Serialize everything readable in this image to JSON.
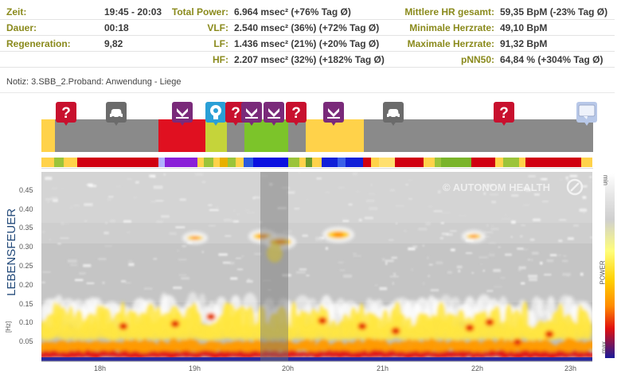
{
  "stats": {
    "col1": [
      {
        "label": "Zeit:",
        "value": "19:45 - 20:03"
      },
      {
        "label": "Dauer:",
        "value": "00:18"
      },
      {
        "label": "Regeneration:",
        "value": "9,82"
      }
    ],
    "col2": [
      {
        "label": "Total Power:",
        "value": "6.964 msec² (+76% Tag Ø)"
      },
      {
        "label": "VLF:",
        "value": "2.540 msec² (36%) (+72% Tag Ø)"
      },
      {
        "label": "LF:",
        "value": "1.436 msec² (21%) (+20% Tag Ø)"
      },
      {
        "label": "HF:",
        "value": "2.207 msec² (32%) (+182% Tag Ø)"
      }
    ],
    "col3": [
      {
        "label": "Mittlere HR gesamt:",
        "value": "59,35 BpM (-23% Tag Ø)"
      },
      {
        "label": "Minimale Herzrate:",
        "value": "49,10 BpM"
      },
      {
        "label": "Maximale Herzrate:",
        "value": "91,32 BpM"
      },
      {
        "label": "pNN50:",
        "value": "64,84 % (+304% Tag Ø)"
      }
    ]
  },
  "note": "Notiz: 3.SBB_2.Proband: Anwendung - Liege",
  "watermark": "© AUTONOM HEALTH",
  "markers": [
    {
      "kind": "question",
      "icon": "question-icon",
      "color": "#c8102e"
    },
    {
      "kind": "car",
      "icon": "car-icon",
      "color": "#6b6b6b"
    },
    {
      "kind": "chevron",
      "icon": "chevron-down-icon",
      "color": "#7a2a7a"
    },
    {
      "kind": "head",
      "icon": "head-icon",
      "color": "#2a9fd6"
    },
    {
      "kind": "question",
      "icon": "question-icon",
      "color": "#c8102e"
    },
    {
      "kind": "chevron",
      "icon": "chevron-down-icon",
      "color": "#7a2a7a"
    },
    {
      "kind": "chevron",
      "icon": "chevron-down-icon",
      "color": "#7a2a7a"
    },
    {
      "kind": "question",
      "icon": "question-icon",
      "color": "#c8102e"
    },
    {
      "kind": "chevron",
      "icon": "chevron-down-icon",
      "color": "#7a2a7a"
    },
    {
      "kind": "car",
      "icon": "car-icon",
      "color": "#6b6b6b"
    },
    {
      "kind": "question",
      "icon": "question-icon",
      "color": "#c8102e"
    },
    {
      "kind": "comment",
      "icon": "comment-icon",
      "color": "#b8c8e8"
    }
  ],
  "colors": {
    "label": "#8a8a1c",
    "marker_gray": "#8a8a8a",
    "marker_yellow": "#ffd24a",
    "marker_red": "#e01020",
    "marker_lime": "#c5d43a",
    "marker_green": "#7cc42a"
  },
  "chart_data": {
    "type": "heatmap",
    "title": "",
    "ylabel": "LEBENSFEUER",
    "yunit": "[Hz]",
    "yticks": [
      "0.45",
      "0.40",
      "0.35",
      "0.30",
      "0.25",
      "0.20",
      "0.15",
      "0.10",
      "0.05"
    ],
    "ylim": [
      0,
      0.5
    ],
    "xticks": [
      "18h",
      "19h",
      "20h",
      "21h",
      "22h",
      "23h"
    ],
    "legend": {
      "title": "POWER",
      "min": "min",
      "max": "max",
      "placement": "right"
    },
    "highlight": {
      "from": "19:45",
      "to": "20:03"
    }
  }
}
